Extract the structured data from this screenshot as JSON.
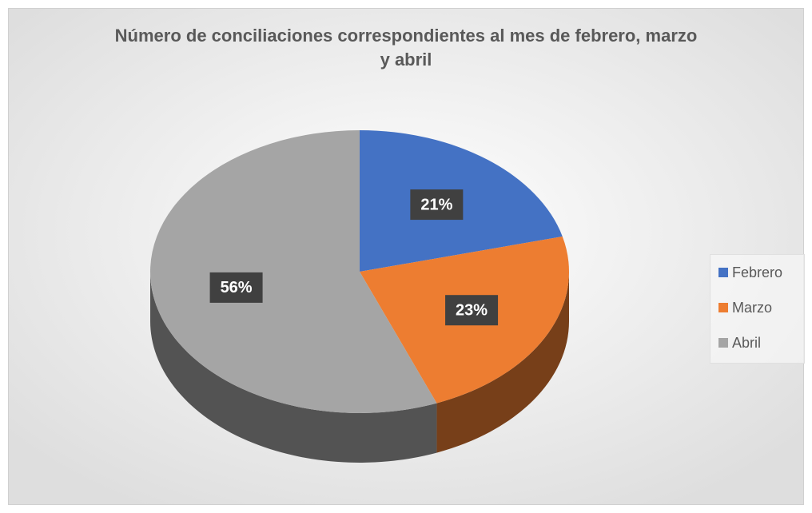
{
  "chart_data": {
    "type": "pie",
    "title": "Número de conciliaciones correspondientes al mes de febrero, marzo y abril",
    "categories": [
      "Febrero",
      "Marzo",
      "Abril"
    ],
    "values": [
      21,
      23,
      56
    ],
    "value_labels": [
      "21%",
      "23%",
      "56%"
    ],
    "colors": [
      "#4472c4",
      "#ed7d31",
      "#a5a5a5"
    ],
    "legend": "right"
  }
}
